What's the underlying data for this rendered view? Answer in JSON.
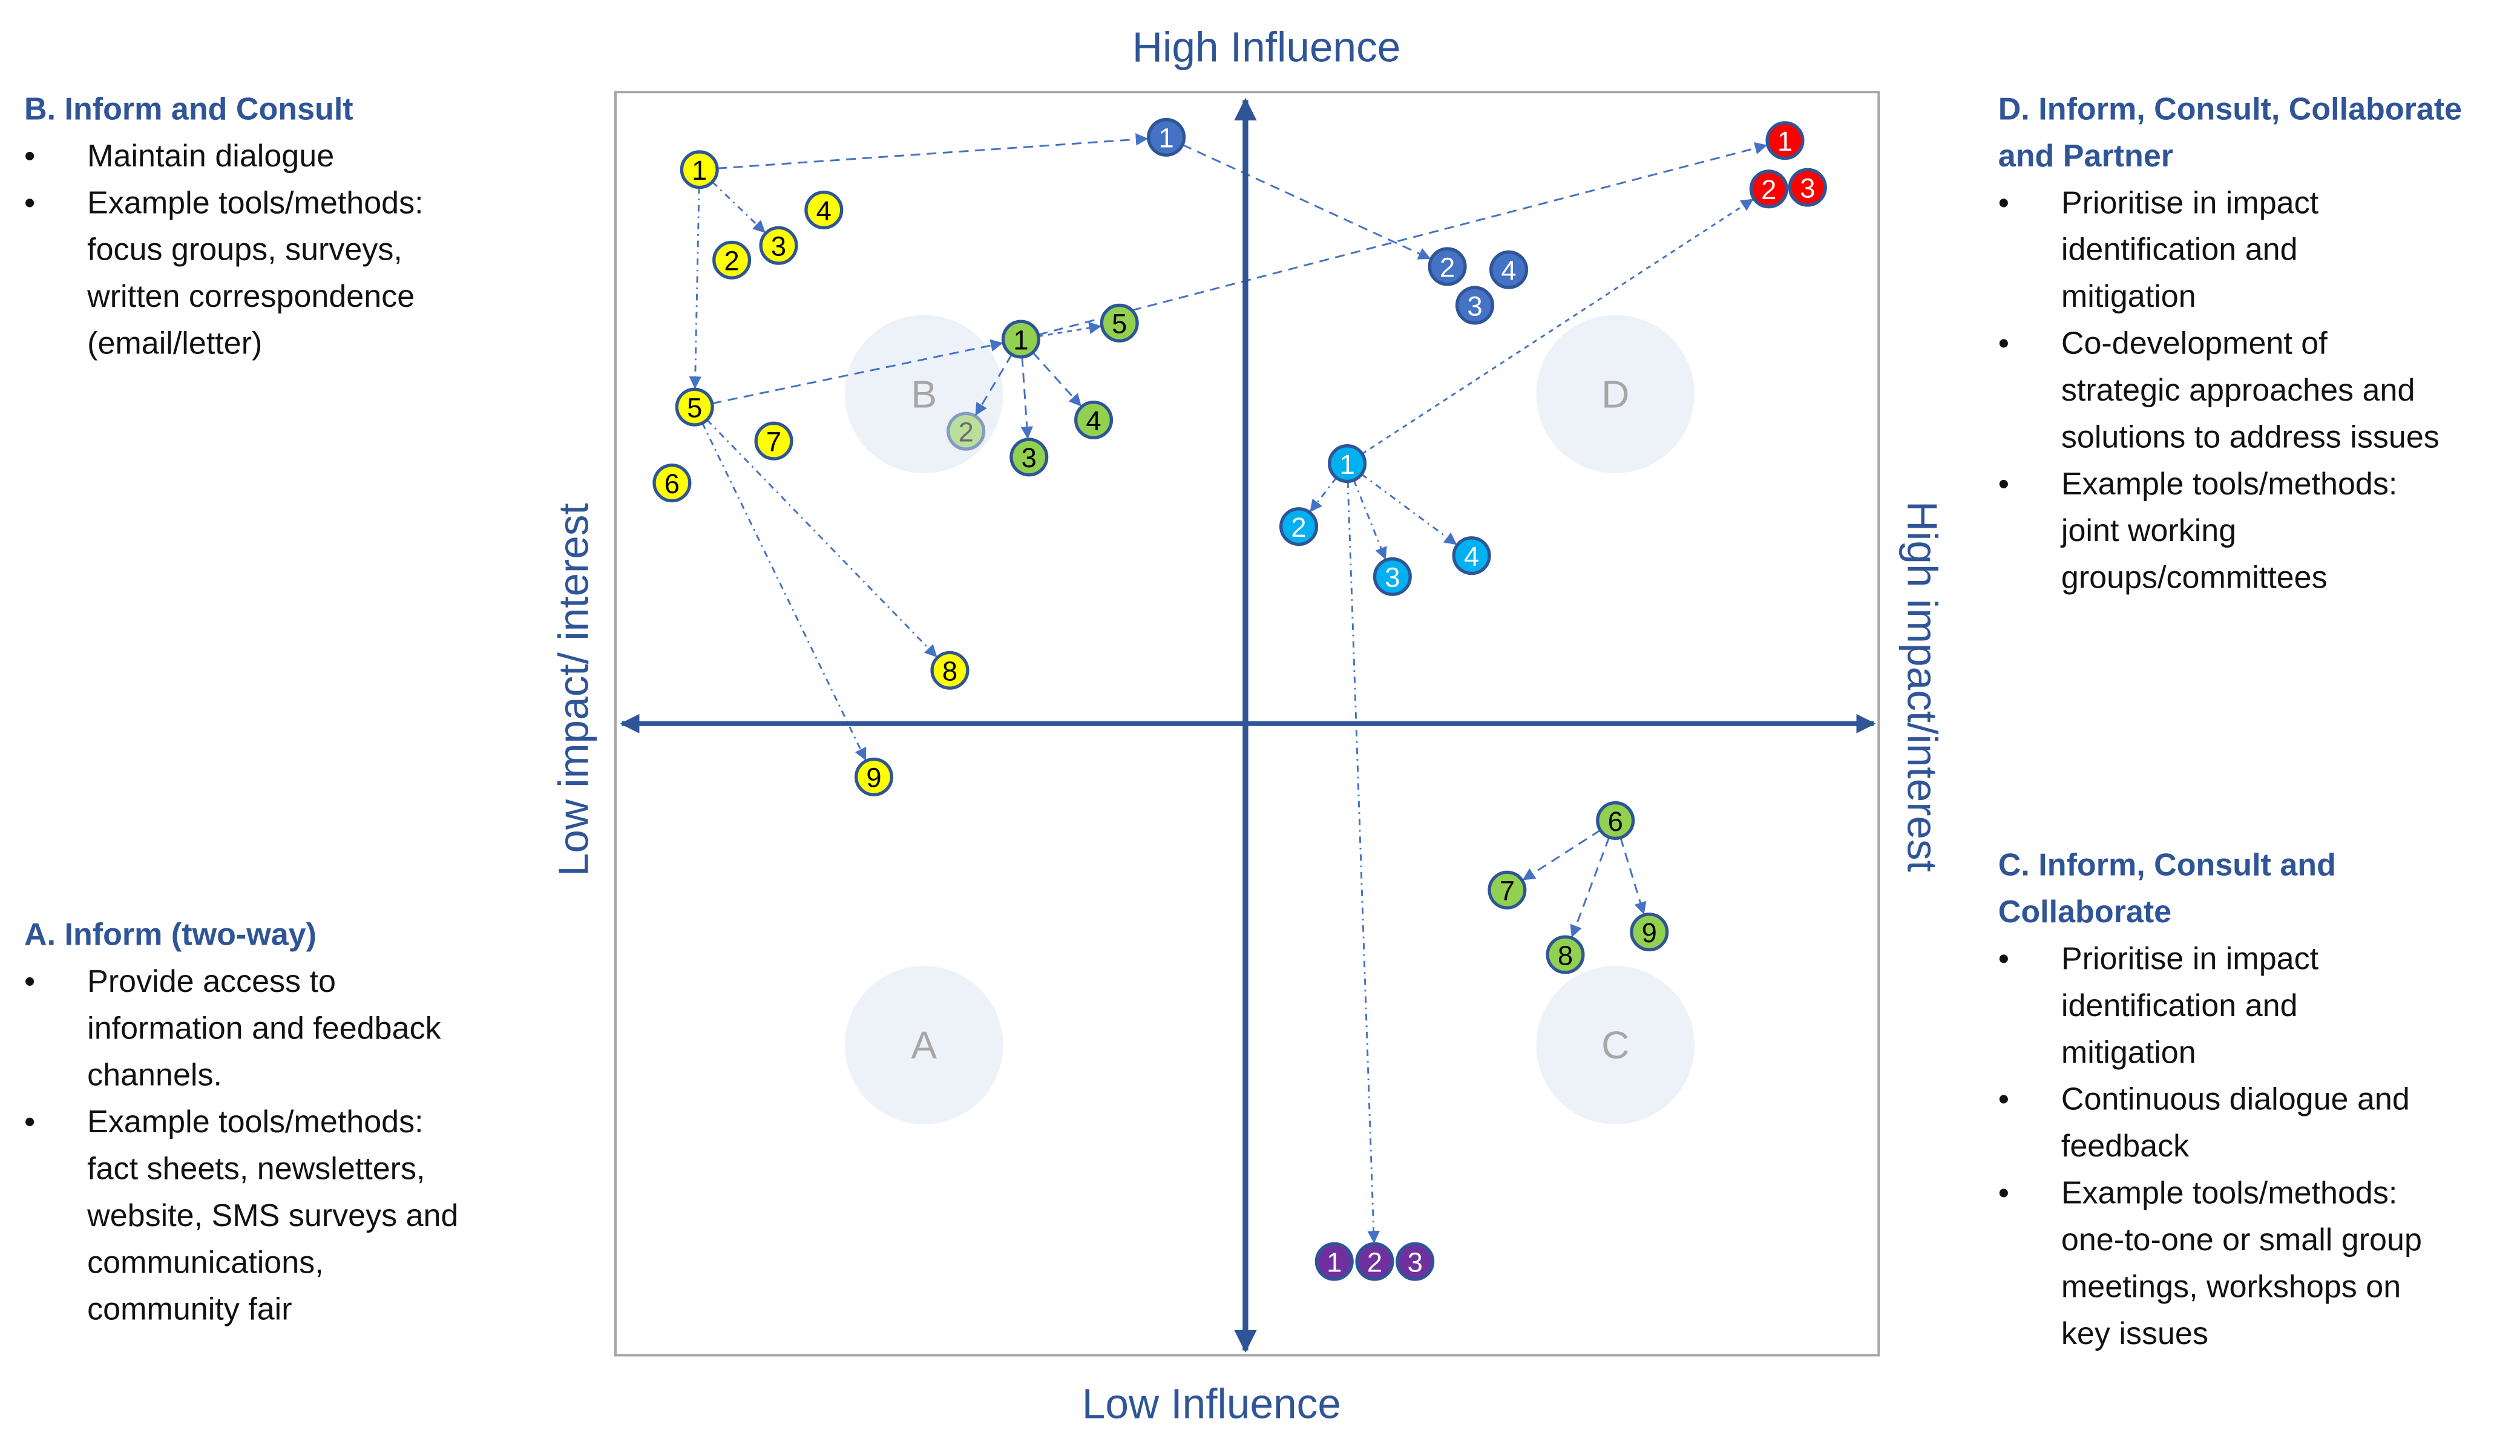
{
  "axes": {
    "top": "High Influence",
    "bottom": "Low Influence",
    "left": "Low impact/ interest",
    "right": "High impact/interest"
  },
  "quadrants": [
    "A",
    "B",
    "C",
    "D"
  ],
  "panels": {
    "b": {
      "heading": "B. Inform and Consult",
      "bullets": [
        "Maintain dialogue",
        "Example tools/methods:\nfocus groups, surveys,\nwritten correspondence\n(email/letter)"
      ]
    },
    "a": {
      "heading": "A. Inform (two-way)",
      "bullets": [
        "Provide access to\ninformation and feedback\nchannels.",
        "Example tools/methods:\nfact sheets, newsletters,\nwebsite, SMS surveys and\ncommunications,\ncommunity fair"
      ]
    },
    "d": {
      "heading": "D. Inform, Consult, Collaborate\nand Partner",
      "bullets": [
        "Prioritise in impact\nidentification and\nmitigation",
        "Co-development of\nstrategic approaches and\nsolutions to address issues",
        "Example tools/methods:\njoint working\ngroups/committees"
      ]
    },
    "c": {
      "heading": "C. Inform, Consult and\nCollaborate",
      "bullets": [
        "Prioritise in impact\nidentification and\nmitigation",
        "Continuous dialogue and\nfeedback",
        "Example tools/methods:\none-to-one or small group\nmeetings, workshops on\nkey issues"
      ]
    }
  },
  "colors": {
    "axis": "#2f5597",
    "arrow": "#4472c4",
    "quadrant_circle": "#edf2f9",
    "yellow": "#ffff00",
    "green": "#92d050",
    "dark_blue": "#4472c4",
    "red": "#ff0000",
    "cyan": "#00b0f0",
    "purple": "#7030a0"
  },
  "node_groups": [
    {
      "color": "yellow",
      "text_color": "#000000",
      "labels": [
        "1",
        "2",
        "3",
        "4",
        "5",
        "6",
        "7",
        "8",
        "9"
      ]
    },
    {
      "color": "green",
      "text_color": "#000000",
      "labels": [
        "1",
        "2",
        "3",
        "4",
        "5",
        "6",
        "7",
        "8",
        "9"
      ]
    },
    {
      "color": "dark_blue",
      "text_color": "#ffffff",
      "labels": [
        "1",
        "2",
        "3",
        "4"
      ]
    },
    {
      "color": "red",
      "text_color": "#ffffff",
      "labels": [
        "1",
        "2",
        "3"
      ]
    },
    {
      "color": "cyan",
      "text_color": "#ffffff",
      "labels": [
        "1",
        "2",
        "3",
        "4"
      ]
    },
    {
      "color": "purple",
      "text_color": "#ffffff",
      "labels": [
        "1",
        "2",
        "3"
      ]
    }
  ]
}
